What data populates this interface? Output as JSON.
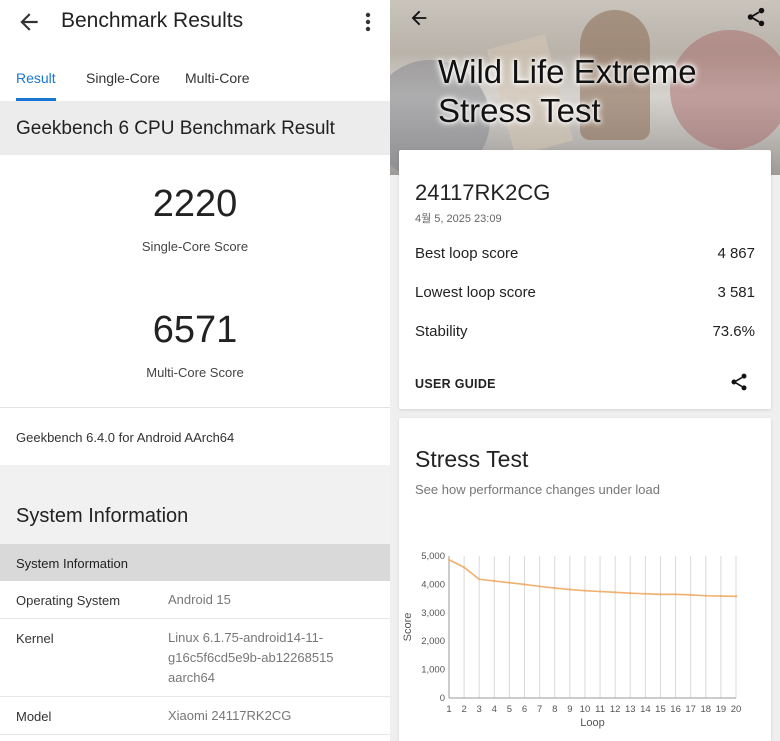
{
  "left": {
    "appbar": {
      "title": "Benchmark Results"
    },
    "tabs": [
      {
        "label": "Result",
        "active": true
      },
      {
        "label": "Single-Core",
        "active": false
      },
      {
        "label": "Multi-Core",
        "active": false
      }
    ],
    "accent": "#1976d2",
    "section_title": "Geekbench 6 CPU Benchmark Result",
    "single_core": {
      "score": "2220",
      "label": "Single-Core Score"
    },
    "multi_core": {
      "score": "6571",
      "label": "Multi-Core Score"
    },
    "version": "Geekbench 6.4.0 for Android AArch64",
    "system": {
      "title": "System Information",
      "subheader": "System Information",
      "rows": [
        {
          "key": "Operating System",
          "value": "Android 15"
        },
        {
          "key": "Kernel",
          "value": "Linux 6.1.75-android14-11-g16c5f6cd5e9b-ab12268515 aarch64"
        },
        {
          "key": "Model",
          "value": "Xiaomi 24117RK2CG"
        }
      ]
    }
  },
  "right": {
    "hero_title": "Wild Life Extreme Stress Test",
    "device": "24117RK2CG",
    "date": "4월 5, 2025 23:09",
    "rows": [
      {
        "label": "Best loop score",
        "value": "4 867"
      },
      {
        "label": "Lowest loop score",
        "value": "3 581"
      },
      {
        "label": "Stability",
        "value": "73.6%"
      }
    ],
    "user_guide": "USER GUIDE",
    "stress": {
      "title": "Stress Test",
      "subtitle": "See how performance changes under load"
    }
  },
  "chart_data": {
    "type": "line",
    "title": "",
    "xlabel": "Loop",
    "ylabel": "Score",
    "x": [
      1,
      2,
      3,
      4,
      5,
      6,
      7,
      8,
      9,
      10,
      11,
      12,
      13,
      14,
      15,
      16,
      17,
      18,
      19,
      20
    ],
    "ylim": [
      0,
      5000
    ],
    "yticks": [
      "0",
      "1,000",
      "2,000",
      "3,000",
      "4,000",
      "5,000"
    ],
    "grid": "vertical",
    "color": "#f0b070",
    "series": [
      {
        "values": [
          4867,
          4600,
          4180,
          4120,
          4060,
          4000,
          3930,
          3870,
          3820,
          3780,
          3750,
          3720,
          3690,
          3670,
          3650,
          3650,
          3630,
          3600,
          3590,
          3581
        ]
      }
    ]
  }
}
